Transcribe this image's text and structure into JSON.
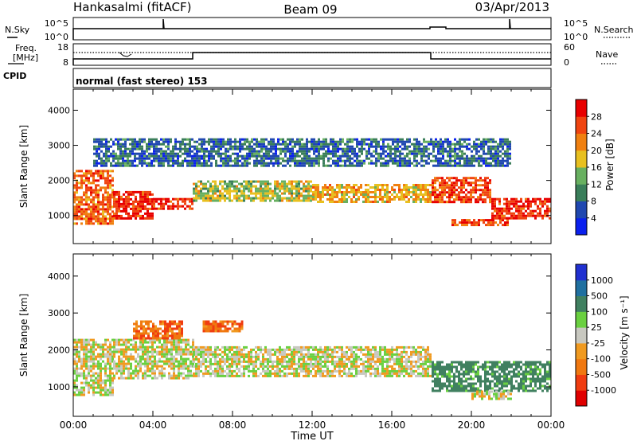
{
  "header": {
    "station": "Hankasalmi (fitACF)",
    "beam": "Beam 09",
    "date": "03/Apr/2013"
  },
  "panels": {
    "nsky": {
      "left_label": "N.Sky",
      "left_ticks": [
        "10^5",
        "10^0"
      ],
      "right_label": "N.Search",
      "right_ticks": [
        "10^5",
        "10^0"
      ]
    },
    "freq": {
      "left_label_1": "Freq.",
      "left_label_2": "[MHz]",
      "left_ticks": [
        "18",
        "8"
      ],
      "right_label": "Nave",
      "right_ticks": [
        "60",
        "0"
      ]
    },
    "cpid": {
      "label": "CPID",
      "text": "normal (fast stereo) 153"
    }
  },
  "colors": {
    "power": [
      "#0a20ee",
      "#2048b0",
      "#3a7e5a",
      "#68b060",
      "#e8c020",
      "#f08010",
      "#f04410",
      "#e80000"
    ],
    "velocity": [
      "#e00000",
      "#f03c10",
      "#f07810",
      "#f09a20",
      "#c8c8c0",
      "#6ad040",
      "#408060",
      "#2070a0",
      "#2030d0"
    ]
  },
  "chart_data": [
    {
      "type": "heatmap",
      "title": "",
      "xlabel": "",
      "ylabel": "Slant Range [km]",
      "x_ticks": [
        "00:00",
        "04:00",
        "08:00",
        "12:00",
        "16:00",
        "20:00",
        "00:00"
      ],
      "y_ticks": [
        "1000",
        "2000",
        "3000",
        "4000"
      ],
      "ylim": [
        200,
        4600
      ],
      "colorbar": {
        "label": "Power [dB]",
        "ticks": [
          "4",
          "8",
          "12",
          "16",
          "20",
          "24",
          "28"
        ],
        "range": [
          0,
          32
        ]
      },
      "echo_bands": [
        {
          "t": [
            0.0,
            2.0
          ],
          "r": [
            800,
            2300
          ],
          "level": 24
        },
        {
          "t": [
            2.0,
            4.0
          ],
          "r": [
            900,
            1700
          ],
          "level": 28
        },
        {
          "t": [
            4.0,
            6.0
          ],
          "r": [
            1200,
            1500
          ],
          "level": 28
        },
        {
          "t": [
            6.0,
            12.0
          ],
          "r": [
            1400,
            2000
          ],
          "level": 16
        },
        {
          "t": [
            12.0,
            18.0
          ],
          "r": [
            1400,
            1900
          ],
          "level": 20
        },
        {
          "t": [
            18.0,
            21.0
          ],
          "r": [
            1400,
            2100
          ],
          "level": 26
        },
        {
          "t": [
            19.0,
            22.0
          ],
          "r": [
            700,
            900
          ],
          "level": 26
        },
        {
          "t": [
            21.0,
            24.0
          ],
          "r": [
            900,
            1500
          ],
          "level": 28
        },
        {
          "t": [
            1.0,
            22.0
          ],
          "r": [
            2400,
            3200
          ],
          "level": 8
        }
      ]
    },
    {
      "type": "heatmap",
      "title": "",
      "xlabel": "Time UT",
      "ylabel": "Slant Range [km]",
      "x_ticks": [
        "00:00",
        "04:00",
        "08:00",
        "12:00",
        "16:00",
        "20:00",
        "00:00"
      ],
      "y_ticks": [
        "1000",
        "2000",
        "3000",
        "4000"
      ],
      "ylim": [
        200,
        4600
      ],
      "colorbar": {
        "label": "Velocity [m s⁻¹]",
        "ticks": [
          "1000",
          "500",
          "100",
          "25",
          "-25",
          "-100",
          "-500",
          "-1000"
        ],
        "range": [
          -1000,
          1000
        ]
      },
      "echo_bands": [
        {
          "t": [
            0.0,
            2.0
          ],
          "r": [
            800,
            2300
          ],
          "level": 0
        },
        {
          "t": [
            2.0,
            6.0
          ],
          "r": [
            1200,
            2300
          ],
          "level": 0
        },
        {
          "t": [
            6.0,
            18.0
          ],
          "r": [
            1300,
            2100
          ],
          "level": 0
        },
        {
          "t": [
            3.0,
            5.5
          ],
          "r": [
            2300,
            2800
          ],
          "level": -150
        },
        {
          "t": [
            6.5,
            8.5
          ],
          "r": [
            2500,
            2800
          ],
          "level": -150
        },
        {
          "t": [
            18.0,
            24.0
          ],
          "r": [
            900,
            1700
          ],
          "level": 150
        },
        {
          "t": [
            20.0,
            22.0
          ],
          "r": [
            700,
            900
          ],
          "level": 0
        }
      ]
    }
  ]
}
